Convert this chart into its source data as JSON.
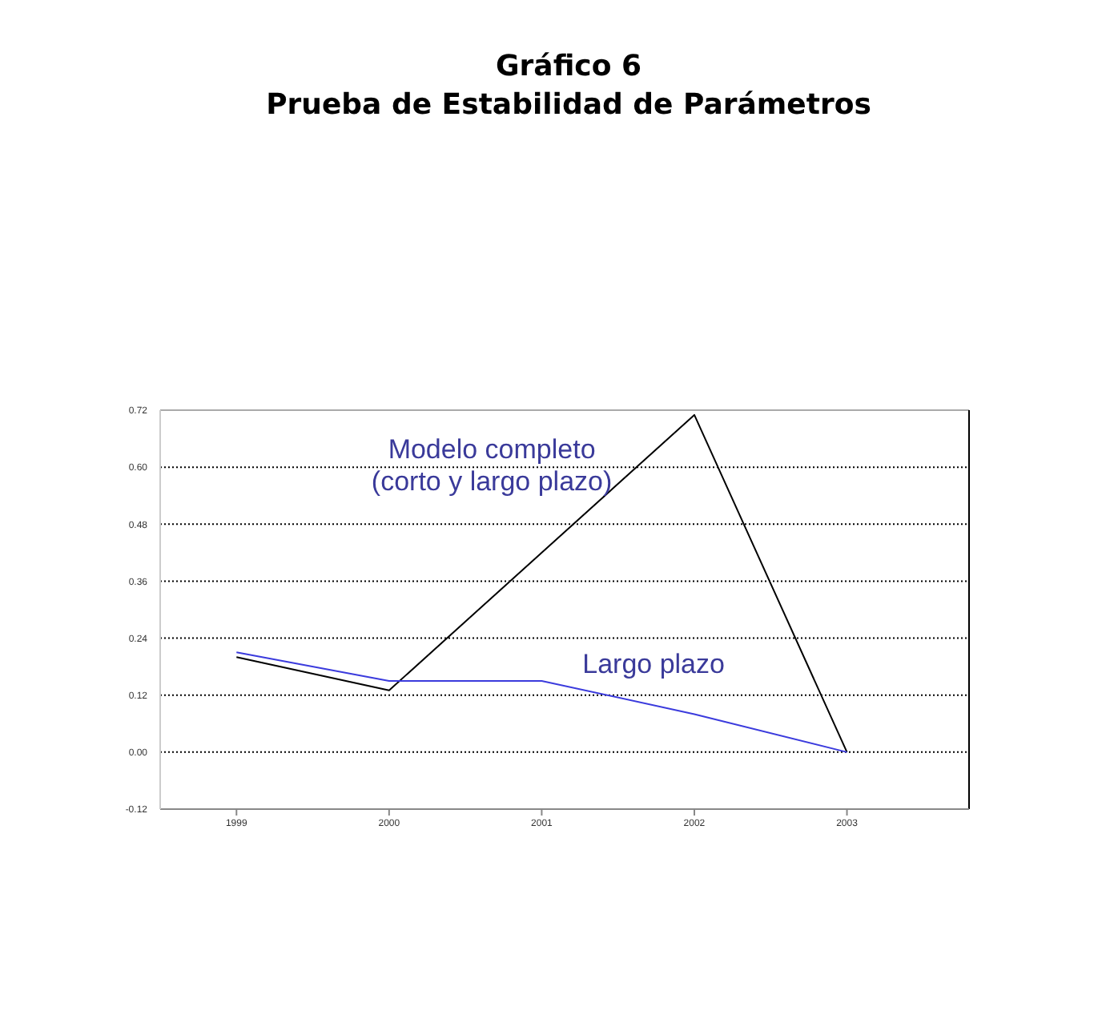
{
  "chart_data": {
    "type": "line",
    "title": "Gráfico 6",
    "subtitle": "Prueba de Estabilidad de Parámetros",
    "x": [
      1999,
      2000,
      2001,
      2002,
      2003
    ],
    "series": [
      {
        "name": "Modelo completo\n(corto y largo plazo)",
        "color": "#000000",
        "x": [
          1999,
          2000,
          2002,
          2003
        ],
        "values": [
          0.2,
          0.13,
          0.71,
          0.0
        ]
      },
      {
        "name": "Largo plazo",
        "color": "#3b3bdd",
        "values": [
          0.21,
          0.15,
          0.15,
          0.08,
          0.0
        ]
      }
    ],
    "xlim": [
      1998.5,
      2003.8
    ],
    "xticks": [
      1999,
      2000,
      2001,
      2002,
      2003
    ],
    "ylim": [
      -0.12,
      0.72
    ],
    "yticks": [
      -0.12,
      {
        "value": 0,
        "label": "0.00"
      },
      0.12,
      0.24,
      0.36,
      0.48,
      {
        "value": 0.6,
        "label": "0.60"
      },
      0.72
    ],
    "grid": "y",
    "line_style": "solid"
  }
}
